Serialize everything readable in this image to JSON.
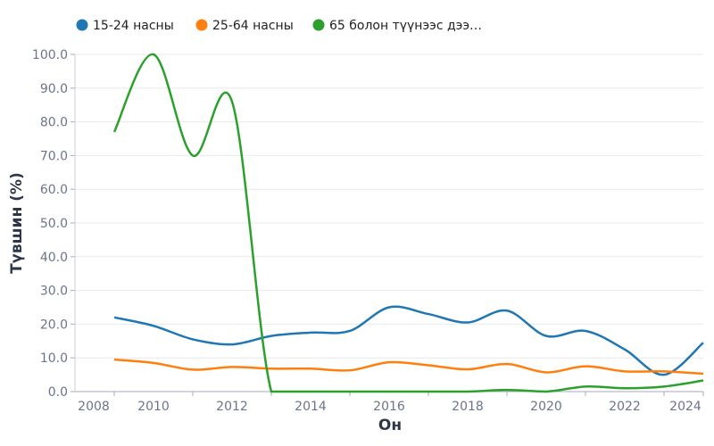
{
  "chart_data": {
    "type": "line",
    "title": "",
    "xlabel": "Он",
    "ylabel": "Түвшин (%)",
    "xlim": [
      2008,
      2024
    ],
    "ylim": [
      0,
      100
    ],
    "grid": true,
    "legend_position": "top",
    "x_ticks": [
      "2008",
      "2010",
      "2012",
      "2014",
      "2016",
      "2018",
      "2020",
      "2022",
      "2024"
    ],
    "y_ticks": [
      "0.0",
      "10.0",
      "20.0",
      "30.0",
      "40.0",
      "50.0",
      "60.0",
      "70.0",
      "80.0",
      "90.0",
      "100.0"
    ],
    "x": [
      2009,
      2010,
      2011,
      2012,
      2013,
      2014,
      2015,
      2016,
      2017,
      2018,
      2019,
      2020,
      2021,
      2022,
      2023,
      2024
    ],
    "series": [
      {
        "name": "15-24 насны",
        "color": "#1f77b4",
        "values": [
          22,
          19.5,
          15.5,
          14,
          16.5,
          17.5,
          18,
          25,
          23,
          20.5,
          24,
          16.5,
          18,
          12.5,
          5,
          14.5
        ]
      },
      {
        "name": "25-64 насны",
        "color": "#ff7f0e",
        "values": [
          9.5,
          8.5,
          6.5,
          7.3,
          6.8,
          6.8,
          6.3,
          8.7,
          7.8,
          6.6,
          8.2,
          5.7,
          7.5,
          6,
          6,
          5.3
        ]
      },
      {
        "name": "65 болон түүнээс дээ…",
        "color": "#2ca02c",
        "values": [
          77,
          100,
          70,
          86,
          0,
          0,
          0,
          0,
          0,
          0,
          0.5,
          0,
          1.5,
          1,
          1.5,
          3.3
        ]
      }
    ]
  }
}
